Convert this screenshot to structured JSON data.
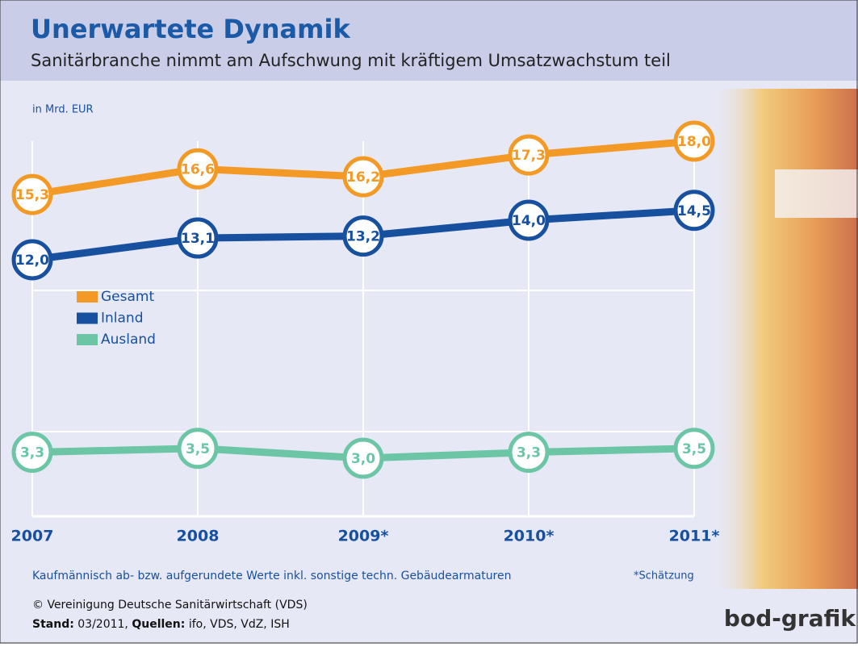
{
  "chart_data": {
    "type": "line",
    "title": "Unerwartete Dynamik",
    "subtitle": "Sanitärbranche nimmt am Aufschwung mit kräftigem Umsatzwachstum teil",
    "unit_label": "in Mrd. EUR",
    "categories": [
      "2007",
      "2008",
      "2009*",
      "2010*",
      "2011*"
    ],
    "series": [
      {
        "name": "Gesamt",
        "color": "#f39a26",
        "values": [
          15.3,
          16.6,
          16.2,
          17.3,
          18.0
        ],
        "value_labels": [
          "15,3",
          "16,6",
          "16,2",
          "17,3",
          "18,0"
        ]
      },
      {
        "name": "Inland",
        "color": "#17509e",
        "values": [
          12.0,
          13.1,
          13.2,
          14.0,
          14.5
        ],
        "value_labels": [
          "12,0",
          "13,1",
          "13,2",
          "14,0",
          "14,5"
        ]
      },
      {
        "name": "Ausland",
        "color": "#6cc6a6",
        "values": [
          3.3,
          3.5,
          3.0,
          3.3,
          3.5
        ],
        "value_labels": [
          "3,3",
          "3,5",
          "3,0",
          "3,3",
          "3,5"
        ]
      }
    ],
    "note": "Kaufmännisch ab- bzw. aufgerundete Werte inkl. sonstige techn. Gebäudearmaturen",
    "estimate_note": "*Schätzung",
    "source": "© Vereinigung Deutsche Sanitärwirtschaft (VDS)",
    "stand_label": "Stand:",
    "stand": "03/2011,",
    "sources_label": "Quellen:",
    "sources": "ifo, VDS, VdZ, ISH",
    "logo": "bod-grafik"
  }
}
